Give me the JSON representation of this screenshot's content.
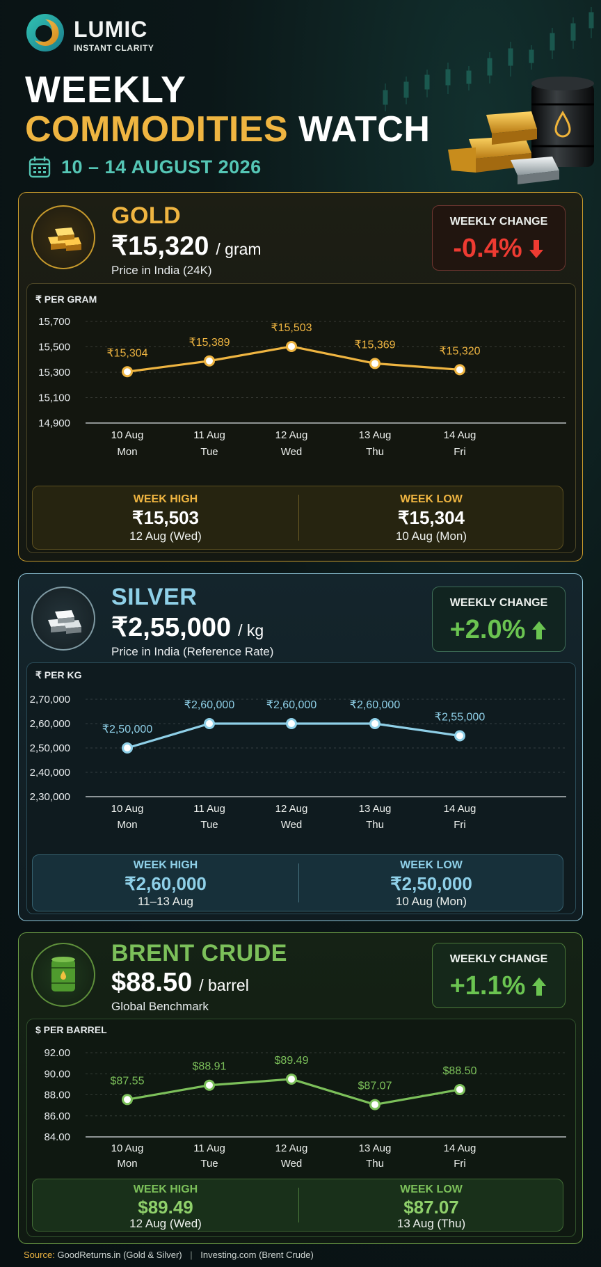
{
  "brand": {
    "name": "LUMIC",
    "tagline": "INSTANT CLARITY"
  },
  "title": {
    "line1": "WEEKLY",
    "line2_accent": "COMMODITIES",
    "line2_rest": "WATCH",
    "date_range": "10 – 14 AUGUST 2026"
  },
  "colors": {
    "gold": "#efb541",
    "silver": "#8fd0e8",
    "crude": "#7cc05a",
    "down": "#ee3b32",
    "up": "#6bc451",
    "teal": "#55c6b5"
  },
  "gold": {
    "name": "GOLD",
    "price": "₹15,320",
    "unit": "/ gram",
    "subtitle": "Price in India (24K)",
    "change_label": "WEEKLY CHANGE",
    "change": "-0.4%",
    "direction": "down",
    "high_label": "WEEK HIGH",
    "high_value": "₹15,503",
    "high_date": "12 Aug (Wed)",
    "low_label": "WEEK LOW",
    "low_value": "₹15,304",
    "low_date": "10 Aug (Mon)"
  },
  "silver": {
    "name": "SILVER",
    "price": "₹2,55,000",
    "unit": "/ kg",
    "subtitle": "Price in India (Reference Rate)",
    "change_label": "WEEKLY CHANGE",
    "change": "+2.0%",
    "direction": "up",
    "high_label": "WEEK HIGH",
    "high_value": "₹2,60,000",
    "high_date": "11–13 Aug",
    "low_label": "WEEK LOW",
    "low_value": "₹2,50,000",
    "low_date": "10 Aug (Mon)"
  },
  "crude": {
    "name": "BRENT CRUDE",
    "price": "$88.50",
    "unit": "/ barrel",
    "subtitle": "Global Benchmark",
    "change_label": "WEEKLY CHANGE",
    "change": "+1.1%",
    "direction": "up",
    "high_label": "WEEK HIGH",
    "high_value": "$89.49",
    "high_date": "12 Aug (Wed)",
    "low_label": "WEEK LOW",
    "low_value": "$87.07",
    "low_date": "13 Aug (Thu)"
  },
  "chart_data": [
    {
      "type": "line",
      "title": "",
      "ylabel": "₹ PER GRAM",
      "x": [
        "10 Aug",
        "11 Aug",
        "12 Aug",
        "13 Aug",
        "14 Aug"
      ],
      "x_sub": [
        "Mon",
        "Tue",
        "Wed",
        "Thu",
        "Fri"
      ],
      "values": [
        15304,
        15389,
        15503,
        15369,
        15320
      ],
      "point_labels": [
        "₹15,304",
        "₹15,389",
        "₹15,503",
        "₹15,369",
        "₹15,320"
      ],
      "yticks": [
        15700,
        15500,
        15300,
        15100,
        14900
      ],
      "ytick_labels": [
        "15,700",
        "15,500",
        "15,300",
        "15,100",
        "14,900"
      ],
      "ylim": [
        14900,
        15700
      ],
      "grid": true,
      "color": "#efb541"
    },
    {
      "type": "line",
      "title": "",
      "ylabel": "₹ PER KG",
      "x": [
        "10 Aug",
        "11 Aug",
        "12 Aug",
        "13 Aug",
        "14 Aug"
      ],
      "x_sub": [
        "Mon",
        "Tue",
        "Wed",
        "Thu",
        "Fri"
      ],
      "values": [
        250000,
        260000,
        260000,
        260000,
        255000
      ],
      "point_labels": [
        "₹2,50,000",
        "₹2,60,000",
        "₹2,60,000",
        "₹2,60,000",
        "₹2,55,000"
      ],
      "yticks": [
        270000,
        260000,
        250000,
        240000,
        230000
      ],
      "ytick_labels": [
        "2,70,000",
        "2,60,000",
        "2,50,000",
        "2,40,000",
        "2,30,000"
      ],
      "ylim": [
        230000,
        270000
      ],
      "grid": true,
      "color": "#8fd0e8"
    },
    {
      "type": "line",
      "title": "",
      "ylabel": "$ PER BARREL",
      "x": [
        "10 Aug",
        "11 Aug",
        "12 Aug",
        "13 Aug",
        "14 Aug"
      ],
      "x_sub": [
        "Mon",
        "Tue",
        "Wed",
        "Thu",
        "Fri"
      ],
      "values": [
        87.55,
        88.91,
        89.49,
        87.07,
        88.5
      ],
      "point_labels": [
        "$87.55",
        "$88.91",
        "$89.49",
        "$87.07",
        "$88.50"
      ],
      "yticks": [
        92,
        90,
        88,
        86,
        84
      ],
      "ytick_labels": [
        "92.00",
        "90.00",
        "88.00",
        "86.00",
        "84.00"
      ],
      "ylim": [
        84,
        92
      ],
      "grid": true,
      "color": "#7cc05a"
    }
  ],
  "source": {
    "label": "Source:",
    "gold_silver": "GoodReturns.in (Gold & Silver)",
    "crude": "Investing.com (Brent Crude)"
  }
}
